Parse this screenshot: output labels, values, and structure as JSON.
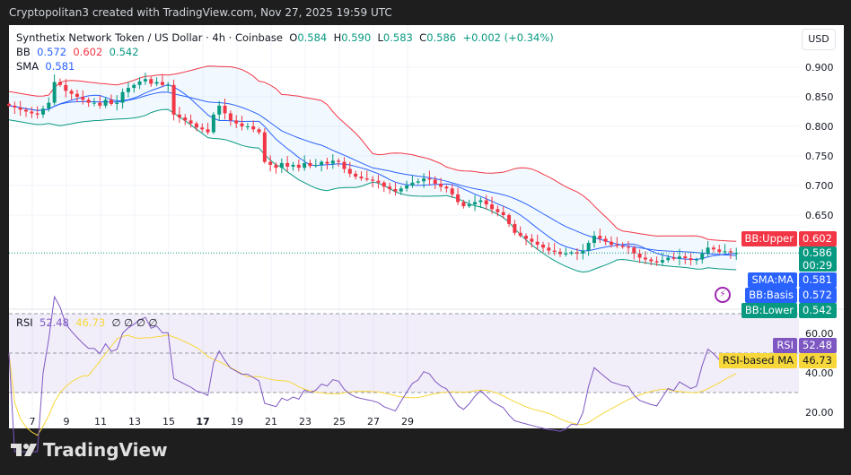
{
  "header": {
    "caption": "Cryptopolitan3 created with TradingView.com, Nov 27, 2025 19:59 UTC"
  },
  "legend": {
    "symbol": "Synthetix Network Token / US Dollar · 4h · Coinbase",
    "o_label": "O",
    "o": "0.584",
    "h_label": "H",
    "h": "0.590",
    "l_label": "L",
    "l": "0.583",
    "c_label": "C",
    "c": "0.586",
    "change": "+0.002 (+0.34%)",
    "bb_label": "BB",
    "bb_basis": "0.572",
    "bb_upper": "0.602",
    "bb_lower": "0.542",
    "sma_label": "SMA",
    "sma": "0.581",
    "rsi_label": "RSI",
    "rsi": "52.48",
    "rsi_ma": "46.73",
    "rsi_extra": "∅ ∅ ∅ ∅"
  },
  "currency_button": "USD",
  "logo_text": "TradingView",
  "price_tags": {
    "bb_upper_label": "BB:Upper",
    "bb_upper": "0.602",
    "last_price": "0.586",
    "countdown": "00:29",
    "sma_label": "SMA:MA",
    "sma": "0.581",
    "bb_basis_label": "BB:Basis",
    "bb_basis": "0.572",
    "bb_lower_label": "BB:Lower",
    "bb_lower": "0.542",
    "rsi_label": "RSI",
    "rsi": "52.48",
    "rsi_ma_label": "RSI-based MA",
    "rsi_ma": "46.73"
  },
  "colors": {
    "up": "#089981",
    "down": "#f23645",
    "bb_upper": "#f23645",
    "bb_lower": "#089981",
    "bb_basis": "#2962ff",
    "sma": "#2962ff",
    "rsi": "#7e57c2",
    "rsi_ma": "#f7d73a"
  },
  "chart_data": [
    {
      "type": "candlestick",
      "timeframe": "4h",
      "ylim": [
        0.525,
        0.92
      ],
      "y_ticks": [
        "0.900",
        "0.850",
        "0.800",
        "0.750",
        "0.700",
        "0.650"
      ],
      "x_ticks": [
        "7",
        "9",
        "11",
        "13",
        "15",
        "17",
        "19",
        "21",
        "23",
        "25",
        "27",
        "29"
      ],
      "last_open": 0.584,
      "closes": [
        0.835,
        0.832,
        0.828,
        0.825,
        0.822,
        0.82,
        0.83,
        0.84,
        0.875,
        0.87,
        0.86,
        0.855,
        0.85,
        0.845,
        0.84,
        0.84,
        0.835,
        0.845,
        0.838,
        0.84,
        0.858,
        0.865,
        0.87,
        0.876,
        0.88,
        0.872,
        0.875,
        0.87,
        0.87,
        0.82,
        0.815,
        0.81,
        0.805,
        0.798,
        0.795,
        0.79,
        0.82,
        0.835,
        0.822,
        0.81,
        0.805,
        0.8,
        0.8,
        0.795,
        0.79,
        0.74,
        0.735,
        0.73,
        0.738,
        0.732,
        0.735,
        0.73,
        0.738,
        0.733,
        0.735,
        0.74,
        0.737,
        0.742,
        0.74,
        0.728,
        0.72,
        0.715,
        0.712,
        0.71,
        0.708,
        0.705,
        0.698,
        0.694,
        0.69,
        0.695,
        0.7,
        0.705,
        0.707,
        0.712,
        0.71,
        0.703,
        0.698,
        0.695,
        0.685,
        0.672,
        0.665,
        0.668,
        0.672,
        0.675,
        0.668,
        0.66,
        0.655,
        0.65,
        0.635,
        0.62,
        0.615,
        0.61,
        0.605,
        0.6,
        0.595,
        0.59,
        0.588,
        0.584,
        0.585,
        0.587,
        0.585,
        0.59,
        0.603,
        0.615,
        0.61,
        0.605,
        0.6,
        0.598,
        0.596,
        0.595,
        0.585,
        0.578,
        0.575,
        0.572,
        0.57,
        0.574,
        0.578,
        0.576,
        0.58,
        0.577,
        0.574,
        0.575,
        0.585,
        0.595,
        0.592,
        0.588,
        0.589,
        0.587,
        0.586
      ],
      "indicators": [
        "Bollinger Bands",
        "SMA"
      ]
    },
    {
      "type": "line",
      "title": "RSI",
      "ylim": [
        15,
        75
      ],
      "y_ticks": [
        "60.00",
        "40.00",
        "20.00"
      ],
      "bands": [
        30,
        50,
        70
      ],
      "series": [
        {
          "name": "RSI"
        },
        {
          "name": "RSI-based MA"
        }
      ]
    }
  ]
}
